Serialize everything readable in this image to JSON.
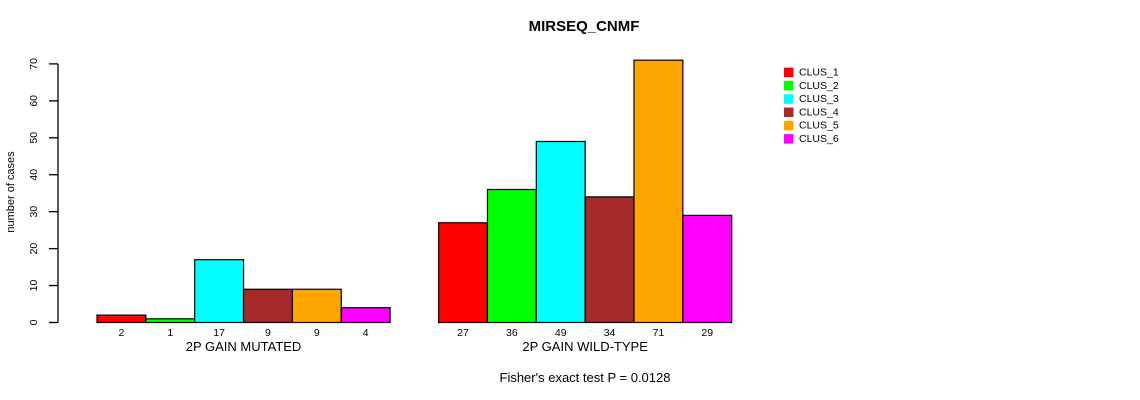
{
  "chart_data": {
    "type": "bar",
    "title": "MIRSEQ_CNMF",
    "ylabel": "number of cases",
    "xlabel": "",
    "footer": "Fisher's exact test P = 0.0128",
    "ylim": [
      0,
      70
    ],
    "yticks": [
      0,
      10,
      20,
      30,
      40,
      50,
      60,
      70
    ],
    "grid": false,
    "bar_border_color": "#000000",
    "background_color": "#FFFFFF",
    "legend_position": "right",
    "groups": [
      {
        "label": "2P GAIN MUTATED",
        "values": [
          2,
          1,
          17,
          9,
          9,
          4
        ]
      },
      {
        "label": "2P GAIN WILD-TYPE",
        "values": [
          27,
          36,
          49,
          34,
          71,
          29
        ]
      }
    ],
    "legend": {
      "entries": [
        {
          "label": "CLUS_1",
          "color": "#FF0000"
        },
        {
          "label": "CLUS_2",
          "color": "#00FF00"
        },
        {
          "label": "CLUS_3",
          "color": "#00FFFF"
        },
        {
          "label": "CLUS_4",
          "color": "#A52A2A"
        },
        {
          "label": "CLUS_5",
          "color": "#FFA500"
        },
        {
          "label": "CLUS_6",
          "color": "#FF00FF"
        }
      ]
    }
  }
}
